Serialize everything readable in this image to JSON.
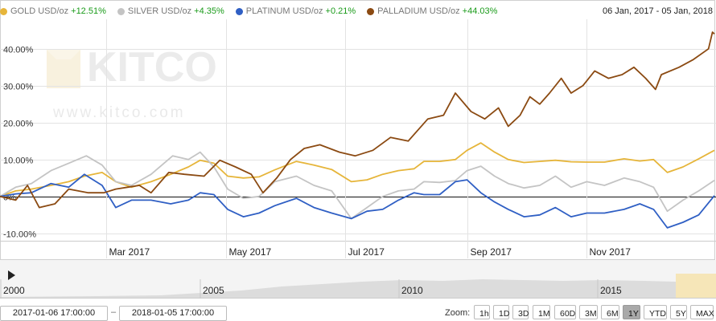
{
  "legend": [
    {
      "name": "GOLD USD/oz",
      "change": "+12.51%",
      "color": "#e6b53a"
    },
    {
      "name": "SILVER USD/oz",
      "change": "+4.35%",
      "color": "#c4c4c4"
    },
    {
      "name": "PLATINUM USD/oz",
      "change": "+0.21%",
      "color": "#2f5fc4"
    },
    {
      "name": "PALLADIUM USD/oz",
      "change": "+44.03%",
      "color": "#8b4a12"
    }
  ],
  "date_range": "06 Jan, 2017 - 05 Jan, 2018",
  "watermark": {
    "brand": "KITCO",
    "url": "www.kitco.com"
  },
  "chart_data": {
    "type": "line",
    "y_ticks": [
      "40.00%",
      "30.00%",
      "20.00%",
      "10.00%",
      "0%",
      "-10.00%"
    ],
    "y_tick_values": [
      40,
      30,
      20,
      10,
      0,
      -10
    ],
    "ylim": [
      -12,
      48
    ],
    "x_range": [
      "2017-01-06",
      "2018-01-05"
    ],
    "x_ticks": [
      {
        "label": "Mar 2017",
        "date": "2017-03-01"
      },
      {
        "label": "May 2017",
        "date": "2017-05-01"
      },
      {
        "label": "Jul 2017",
        "date": "2017-07-01"
      },
      {
        "label": "Sep 2017",
        "date": "2017-09-01"
      },
      {
        "label": "Nov 2017",
        "date": "2017-11-01"
      }
    ],
    "series": [
      {
        "name": "GOLD USD/oz",
        "color": "#e6b53a",
        "points": [
          [
            "2017-01-06",
            0
          ],
          [
            "2017-01-14",
            1.5
          ],
          [
            "2017-01-22",
            2
          ],
          [
            "2017-02-01",
            3
          ],
          [
            "2017-02-10",
            4
          ],
          [
            "2017-02-18",
            5.5
          ],
          [
            "2017-02-27",
            6.5
          ],
          [
            "2017-03-06",
            4
          ],
          [
            "2017-03-14",
            2.5
          ],
          [
            "2017-03-24",
            4
          ],
          [
            "2017-04-03",
            6
          ],
          [
            "2017-04-12",
            8
          ],
          [
            "2017-04-18",
            9.8
          ],
          [
            "2017-04-25",
            9
          ],
          [
            "2017-05-02",
            5.5
          ],
          [
            "2017-05-10",
            5
          ],
          [
            "2017-05-18",
            5.3
          ],
          [
            "2017-05-26",
            7.2
          ],
          [
            "2017-06-06",
            9.5
          ],
          [
            "2017-06-15",
            8.5
          ],
          [
            "2017-06-24",
            7.3
          ],
          [
            "2017-07-04",
            4
          ],
          [
            "2017-07-12",
            4.5
          ],
          [
            "2017-07-20",
            6
          ],
          [
            "2017-07-28",
            7
          ],
          [
            "2017-08-05",
            7.5
          ],
          [
            "2017-08-10",
            9.5
          ],
          [
            "2017-08-18",
            9.5
          ],
          [
            "2017-08-26",
            10
          ],
          [
            "2017-09-01",
            12.5
          ],
          [
            "2017-09-08",
            14.5
          ],
          [
            "2017-09-15",
            12
          ],
          [
            "2017-09-22",
            10
          ],
          [
            "2017-09-30",
            9.2
          ],
          [
            "2017-10-08",
            9.5
          ],
          [
            "2017-10-16",
            9.8
          ],
          [
            "2017-10-24",
            9.4
          ],
          [
            "2017-11-01",
            9.3
          ],
          [
            "2017-11-10",
            9.3
          ],
          [
            "2017-11-20",
            10.2
          ],
          [
            "2017-11-28",
            9.6
          ],
          [
            "2017-12-05",
            10
          ],
          [
            "2017-12-12",
            6.5
          ],
          [
            "2017-12-20",
            8
          ],
          [
            "2017-12-28",
            10.2
          ],
          [
            "2018-01-05",
            12.5
          ]
        ]
      },
      {
        "name": "SILVER USD/oz",
        "color": "#c4c4c4",
        "points": [
          [
            "2017-01-06",
            0
          ],
          [
            "2017-01-14",
            2.5
          ],
          [
            "2017-01-22",
            3.5
          ],
          [
            "2017-02-01",
            7
          ],
          [
            "2017-02-10",
            9
          ],
          [
            "2017-02-19",
            11
          ],
          [
            "2017-02-27",
            8.5
          ],
          [
            "2017-03-06",
            4
          ],
          [
            "2017-03-14",
            3
          ],
          [
            "2017-03-24",
            6
          ],
          [
            "2017-04-04",
            11
          ],
          [
            "2017-04-12",
            10
          ],
          [
            "2017-04-18",
            12
          ],
          [
            "2017-04-25",
            8
          ],
          [
            "2017-05-02",
            2
          ],
          [
            "2017-05-10",
            -0.5
          ],
          [
            "2017-05-18",
            0
          ],
          [
            "2017-05-26",
            4
          ],
          [
            "2017-06-06",
            5.5
          ],
          [
            "2017-06-15",
            3
          ],
          [
            "2017-06-24",
            1.5
          ],
          [
            "2017-07-04",
            -6
          ],
          [
            "2017-07-12",
            -3
          ],
          [
            "2017-07-20",
            0
          ],
          [
            "2017-07-28",
            1.5
          ],
          [
            "2017-08-05",
            2
          ],
          [
            "2017-08-10",
            4
          ],
          [
            "2017-08-18",
            3.8
          ],
          [
            "2017-08-26",
            4.3
          ],
          [
            "2017-09-01",
            7
          ],
          [
            "2017-09-08",
            8.2
          ],
          [
            "2017-09-15",
            5.5
          ],
          [
            "2017-09-22",
            3.5
          ],
          [
            "2017-09-30",
            2.3
          ],
          [
            "2017-10-08",
            3
          ],
          [
            "2017-10-16",
            5.5
          ],
          [
            "2017-10-24",
            2.5
          ],
          [
            "2017-11-01",
            4
          ],
          [
            "2017-11-10",
            3
          ],
          [
            "2017-11-20",
            5
          ],
          [
            "2017-11-28",
            4
          ],
          [
            "2017-12-05",
            2.5
          ],
          [
            "2017-12-12",
            -4
          ],
          [
            "2017-12-20",
            -1
          ],
          [
            "2017-12-28",
            1.5
          ],
          [
            "2018-01-05",
            4.35
          ]
        ]
      },
      {
        "name": "PLATINUM USD/oz",
        "color": "#2f5fc4",
        "points": [
          [
            "2017-01-06",
            0
          ],
          [
            "2017-01-14",
            0.7
          ],
          [
            "2017-01-22",
            1
          ],
          [
            "2017-02-01",
            3.5
          ],
          [
            "2017-02-10",
            2.5
          ],
          [
            "2017-02-18",
            6
          ],
          [
            "2017-02-27",
            3
          ],
          [
            "2017-03-06",
            -3
          ],
          [
            "2017-03-14",
            -1
          ],
          [
            "2017-03-24",
            -1
          ],
          [
            "2017-04-03",
            -2
          ],
          [
            "2017-04-12",
            -1
          ],
          [
            "2017-04-18",
            1
          ],
          [
            "2017-04-25",
            0.5
          ],
          [
            "2017-05-02",
            -3.5
          ],
          [
            "2017-05-10",
            -5.5
          ],
          [
            "2017-05-18",
            -4.5
          ],
          [
            "2017-05-26",
            -2.5
          ],
          [
            "2017-06-06",
            -0.5
          ],
          [
            "2017-06-15",
            -3
          ],
          [
            "2017-06-24",
            -4.5
          ],
          [
            "2017-07-04",
            -6
          ],
          [
            "2017-07-12",
            -4
          ],
          [
            "2017-07-20",
            -3.5
          ],
          [
            "2017-07-28",
            -1
          ],
          [
            "2017-08-05",
            1
          ],
          [
            "2017-08-10",
            0.5
          ],
          [
            "2017-08-18",
            0.5
          ],
          [
            "2017-08-26",
            4
          ],
          [
            "2017-09-01",
            4.5
          ],
          [
            "2017-09-08",
            1
          ],
          [
            "2017-09-15",
            -1.5
          ],
          [
            "2017-09-22",
            -3.5
          ],
          [
            "2017-09-30",
            -5.5
          ],
          [
            "2017-10-08",
            -5
          ],
          [
            "2017-10-16",
            -3
          ],
          [
            "2017-10-24",
            -5.5
          ],
          [
            "2017-11-01",
            -4.5
          ],
          [
            "2017-11-10",
            -4.5
          ],
          [
            "2017-11-20",
            -3.5
          ],
          [
            "2017-11-28",
            -2
          ],
          [
            "2017-12-05",
            -3.5
          ],
          [
            "2017-12-12",
            -8.5
          ],
          [
            "2017-12-20",
            -7
          ],
          [
            "2017-12-28",
            -5
          ],
          [
            "2018-01-05",
            0.21
          ]
        ]
      },
      {
        "name": "PALLADIUM USD/oz",
        "color": "#8b4a12",
        "points": [
          [
            "2017-01-06",
            0
          ],
          [
            "2017-01-14",
            -1
          ],
          [
            "2017-01-20",
            3
          ],
          [
            "2017-01-26",
            -3
          ],
          [
            "2017-02-03",
            -2
          ],
          [
            "2017-02-10",
            2
          ],
          [
            "2017-02-20",
            1
          ],
          [
            "2017-02-28",
            1
          ],
          [
            "2017-03-06",
            2
          ],
          [
            "2017-03-12",
            2.5
          ],
          [
            "2017-03-18",
            3
          ],
          [
            "2017-03-24",
            1
          ],
          [
            "2017-04-02",
            6.5
          ],
          [
            "2017-04-10",
            6
          ],
          [
            "2017-04-20",
            5.5
          ],
          [
            "2017-04-28",
            9.8
          ],
          [
            "2017-05-06",
            8
          ],
          [
            "2017-05-14",
            6
          ],
          [
            "2017-05-20",
            1
          ],
          [
            "2017-05-27",
            5
          ],
          [
            "2017-06-03",
            10
          ],
          [
            "2017-06-10",
            13
          ],
          [
            "2017-06-18",
            14
          ],
          [
            "2017-06-28",
            12
          ],
          [
            "2017-07-06",
            11
          ],
          [
            "2017-07-15",
            12.5
          ],
          [
            "2017-07-24",
            16
          ],
          [
            "2017-08-02",
            15
          ],
          [
            "2017-08-12",
            21
          ],
          [
            "2017-08-20",
            22
          ],
          [
            "2017-08-26",
            28
          ],
          [
            "2017-09-03",
            23
          ],
          [
            "2017-09-10",
            21
          ],
          [
            "2017-09-17",
            24
          ],
          [
            "2017-09-22",
            19
          ],
          [
            "2017-09-28",
            22
          ],
          [
            "2017-10-03",
            27
          ],
          [
            "2017-10-08",
            25
          ],
          [
            "2017-10-13",
            28
          ],
          [
            "2017-10-19",
            32
          ],
          [
            "2017-10-24",
            28
          ],
          [
            "2017-10-30",
            30
          ],
          [
            "2017-11-05",
            34
          ],
          [
            "2017-11-12",
            32
          ],
          [
            "2017-11-19",
            33
          ],
          [
            "2017-11-25",
            35
          ],
          [
            "2017-12-01",
            32
          ],
          [
            "2017-12-06",
            29
          ],
          [
            "2017-12-09",
            33
          ],
          [
            "2017-12-18",
            35
          ],
          [
            "2017-12-25",
            37
          ],
          [
            "2018-01-02",
            40
          ],
          [
            "2018-01-04",
            44.5
          ],
          [
            "2018-01-05",
            44.03
          ]
        ]
      }
    ]
  },
  "navigator": {
    "year_labels": [
      "2000",
      "2005",
      "2010",
      "2015"
    ]
  },
  "date_from": "2017-01-06 17:00:00",
  "date_to": "2018-01-05 17:00:00",
  "zoom": {
    "label": "Zoom:",
    "buttons": [
      "1h",
      "1D",
      "3D",
      "1M",
      "60D",
      "3M",
      "6M",
      "1Y",
      "YTD",
      "5Y",
      "MAX"
    ],
    "active": "1Y"
  }
}
